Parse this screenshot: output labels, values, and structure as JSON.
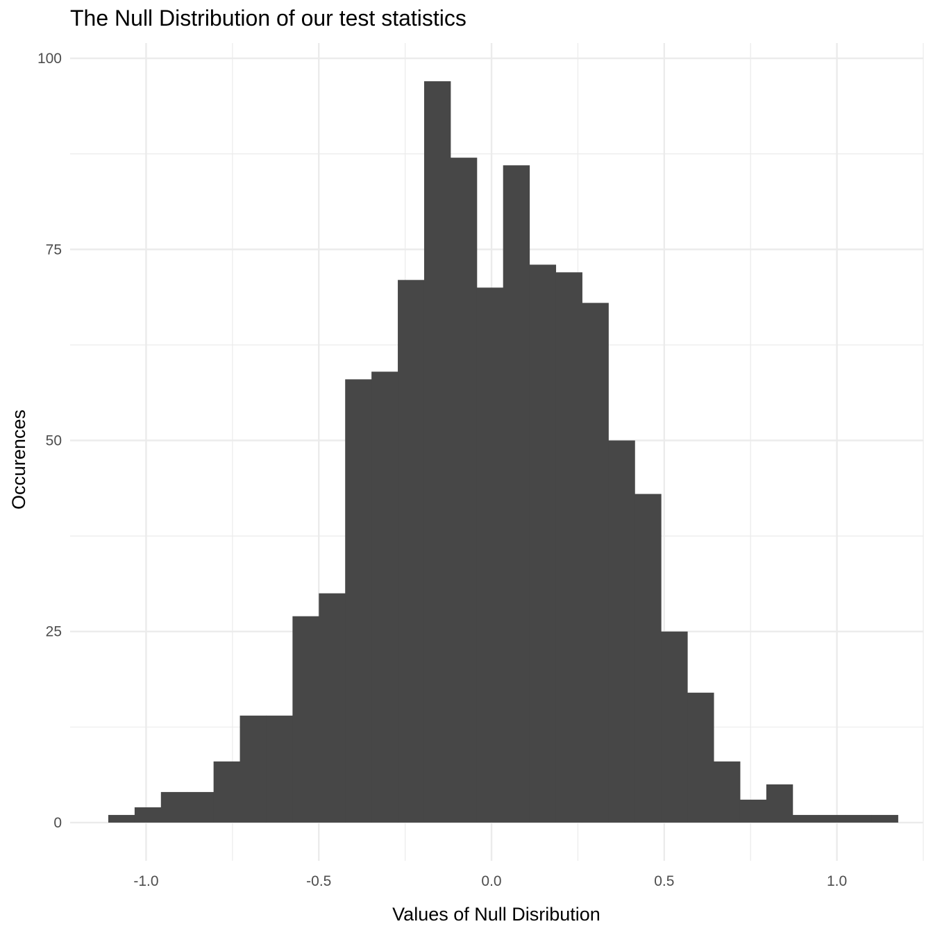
{
  "chart_data": {
    "type": "bar",
    "subtype": "histogram",
    "title": "The Null Distribution of our test statistics",
    "xlabel": "Values of Null Disribution",
    "ylabel": "Occurences",
    "bar_color": "#474747",
    "grid_color": "#ebebeb",
    "grid": true,
    "xlim": [
      -1.22,
      1.25
    ],
    "ylim": [
      -5,
      102
    ],
    "x_ticks": [
      -1.0,
      -0.5,
      0.0,
      0.5,
      1.0
    ],
    "x_tick_labels": [
      "-1.0",
      "-0.5",
      "0.0",
      "0.5",
      "1.0"
    ],
    "y_ticks": [
      0,
      25,
      50,
      75,
      100
    ],
    "y_tick_labels": [
      "0",
      "25",
      "50",
      "75",
      "100"
    ],
    "bin_start": -1.1095,
    "bin_width": 0.0762,
    "counts": [
      1,
      2,
      4,
      4,
      8,
      14,
      14,
      27,
      30,
      58,
      59,
      71,
      97,
      87,
      70,
      86,
      73,
      72,
      68,
      50,
      43,
      25,
      17,
      8,
      3,
      5,
      1,
      1,
      1,
      1
    ]
  }
}
